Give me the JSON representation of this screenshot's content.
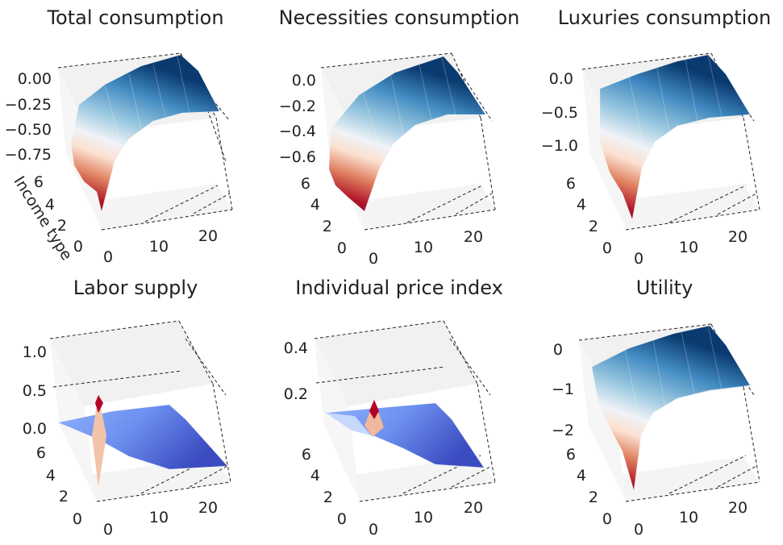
{
  "chart_data": [
    {
      "type": "surface",
      "title": "Total consumption",
      "ylabel": "Income type",
      "xticks": [
        "0",
        "10",
        "20"
      ],
      "yticks": [
        "0",
        "2",
        "4",
        "6"
      ],
      "zticks": [
        "0.00",
        "−0.25",
        "−0.50",
        "−0.75"
      ],
      "zlim": [
        -0.9,
        0.05
      ],
      "colormap": "RdBu",
      "grid": true,
      "values": {
        "at_x0_income0": -0.85,
        "at_x24_income7": 0.0
      }
    },
    {
      "type": "surface",
      "title": "Necessities consumption",
      "xticks": [
        "0",
        "10",
        "20"
      ],
      "yticks": [
        "0",
        "2",
        "4",
        "6"
      ],
      "zticks": [
        "0.0",
        "−0.2",
        "−0.4",
        "−0.6"
      ],
      "zlim": [
        -0.7,
        0.05
      ],
      "colormap": "RdBu",
      "grid": true,
      "values": {
        "at_x0_income0": -0.68,
        "at_x24_income7": 0.0
      }
    },
    {
      "type": "surface",
      "title": "Luxuries consumption",
      "xticks": [
        "0",
        "10",
        "20"
      ],
      "yticks": [
        "0",
        "2",
        "4",
        "6"
      ],
      "zticks": [
        "0.0",
        "−0.5",
        "−1.0"
      ],
      "zlim": [
        -1.4,
        0.1
      ],
      "colormap": "RdBu",
      "grid": true,
      "values": {
        "at_x0_income0": -1.35,
        "at_x24_income7": 0.0
      }
    },
    {
      "type": "surface",
      "title": "Labor supply",
      "xticks": [
        "0",
        "10",
        "20"
      ],
      "yticks": [
        "0",
        "2",
        "4",
        "6"
      ],
      "zticks": [
        "0.0",
        "0.5",
        "1.0"
      ],
      "zlim": [
        -0.2,
        1.2
      ],
      "colormap": "coolwarm",
      "grid": true,
      "values": {
        "spike_max": 0.55,
        "spike_min": -0.15,
        "plateau": 0.0
      }
    },
    {
      "type": "surface",
      "title": "Individual price index",
      "xticks": [
        "0",
        "10",
        "20"
      ],
      "yticks": [
        "0",
        "2",
        "4",
        "6"
      ],
      "zticks": [
        "0.2",
        "0.4"
      ],
      "zlim": [
        0.0,
        0.45
      ],
      "colormap": "coolwarm",
      "grid": true,
      "values": {
        "spike_max": 0.2,
        "plateau": 0.05
      }
    },
    {
      "type": "surface",
      "title": "Utility",
      "xticks": [
        "0",
        "10",
        "20"
      ],
      "yticks": [
        "0",
        "2",
        "4",
        "6"
      ],
      "zticks": [
        "0",
        "−1",
        "−2"
      ],
      "zlim": [
        -2.4,
        0.2
      ],
      "colormap": "RdBu",
      "grid": true,
      "values": {
        "at_x0_income0": -2.4,
        "at_x24_income7": 0.0
      }
    }
  ]
}
